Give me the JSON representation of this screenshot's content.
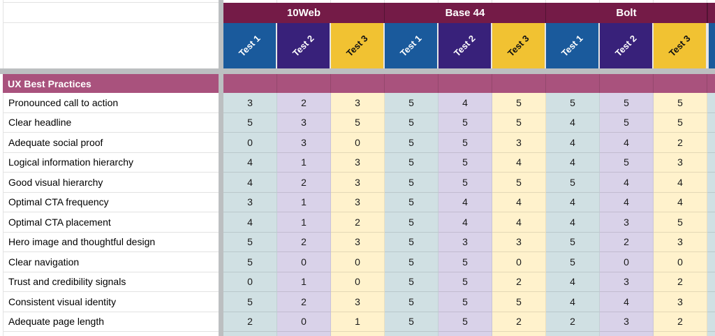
{
  "sheet": {
    "groups": [
      {
        "name": "10Web"
      },
      {
        "name": "Base 44"
      },
      {
        "name": "Bolt"
      }
    ],
    "test_labels": [
      "Test 1",
      "Test 2",
      "Test 3"
    ],
    "section_header": "UX Best Practices",
    "rows": [
      {
        "label": "Pronounced call to action",
        "scores": [
          3,
          2,
          3,
          5,
          4,
          5,
          5,
          5,
          5
        ]
      },
      {
        "label": "Clear headline",
        "scores": [
          5,
          3,
          5,
          5,
          5,
          5,
          4,
          5,
          5
        ]
      },
      {
        "label": "Adequate social proof",
        "scores": [
          0,
          3,
          0,
          5,
          5,
          3,
          4,
          4,
          2
        ]
      },
      {
        "label": "Logical information hierarchy",
        "scores": [
          4,
          1,
          3,
          5,
          5,
          4,
          4,
          5,
          3
        ]
      },
      {
        "label": "Good visual hierarchy",
        "scores": [
          4,
          2,
          3,
          5,
          5,
          5,
          5,
          4,
          4
        ]
      },
      {
        "label": "Optimal CTA frequency",
        "scores": [
          3,
          1,
          3,
          5,
          4,
          4,
          4,
          4,
          4
        ]
      },
      {
        "label": "Optimal CTA placement",
        "scores": [
          4,
          1,
          2,
          5,
          4,
          4,
          4,
          3,
          5
        ]
      },
      {
        "label": "Hero image and thoughtful design",
        "scores": [
          5,
          2,
          3,
          5,
          3,
          3,
          5,
          2,
          3
        ]
      },
      {
        "label": "Clear navigation",
        "scores": [
          5,
          0,
          0,
          5,
          5,
          0,
          5,
          0,
          0
        ]
      },
      {
        "label": "Trust and credibility signals",
        "scores": [
          0,
          1,
          0,
          5,
          5,
          2,
          4,
          3,
          2
        ]
      },
      {
        "label": "Consistent visual identity",
        "scores": [
          5,
          2,
          3,
          5,
          5,
          5,
          4,
          4,
          3
        ]
      },
      {
        "label": "Adequate page length",
        "scores": [
          2,
          0,
          1,
          5,
          5,
          2,
          2,
          3,
          2
        ]
      }
    ],
    "colors": {
      "group_header_bg": "#741b47",
      "test1_header_bg": "#1a5a9c",
      "test2_header_bg": "#38217a",
      "test3_header_bg": "#f1c232",
      "section_header_bg": "#a9527d",
      "test1_cell_bg": "#d0e0e3",
      "test2_cell_bg": "#d9d2e9",
      "test3_cell_bg": "#fff2cc",
      "frozen_divider": "#bcbfc1",
      "gridline": "#e2e2e2"
    }
  }
}
